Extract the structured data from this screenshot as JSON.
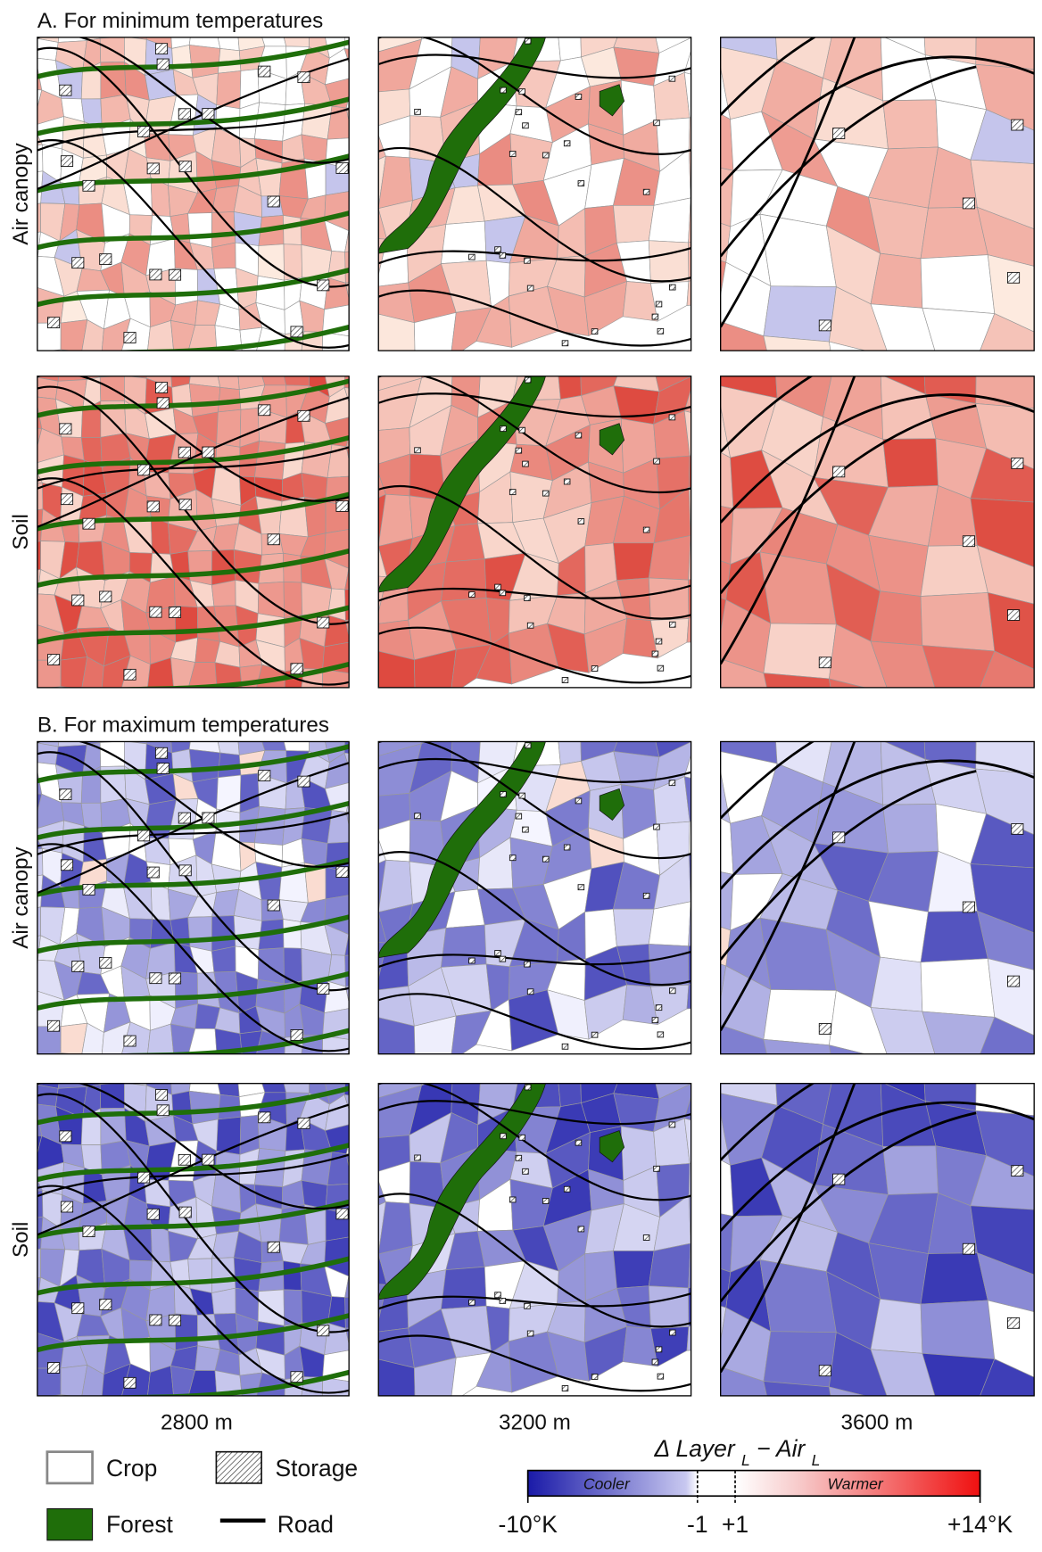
{
  "sections": [
    {
      "title": "A. For minimum temperatures",
      "rows": [
        "Air canopy",
        "Soil"
      ]
    },
    {
      "title": "B. For maximum  temperatures",
      "rows": [
        "Air canopy",
        "Soil"
      ]
    }
  ],
  "columns": [
    "2800 m",
    "3200 m",
    "3600 m"
  ],
  "legend": {
    "crop": "Crop",
    "storage": "Storage",
    "forest": "Forest",
    "road": "Road"
  },
  "colorbar": {
    "title": [
      "Δ Layer ",
      "L",
      " − Air ",
      "L"
    ],
    "low_label": "Cooler",
    "high_label": "Warmer",
    "range": [
      -10,
      14
    ],
    "ticks": [
      {
        "value": -10,
        "label": "-10°K"
      },
      {
        "value": -1,
        "label": "-1"
      },
      {
        "value": 1,
        "label": "+1"
      },
      {
        "value": 14,
        "label": "+14°K"
      }
    ]
  }
}
